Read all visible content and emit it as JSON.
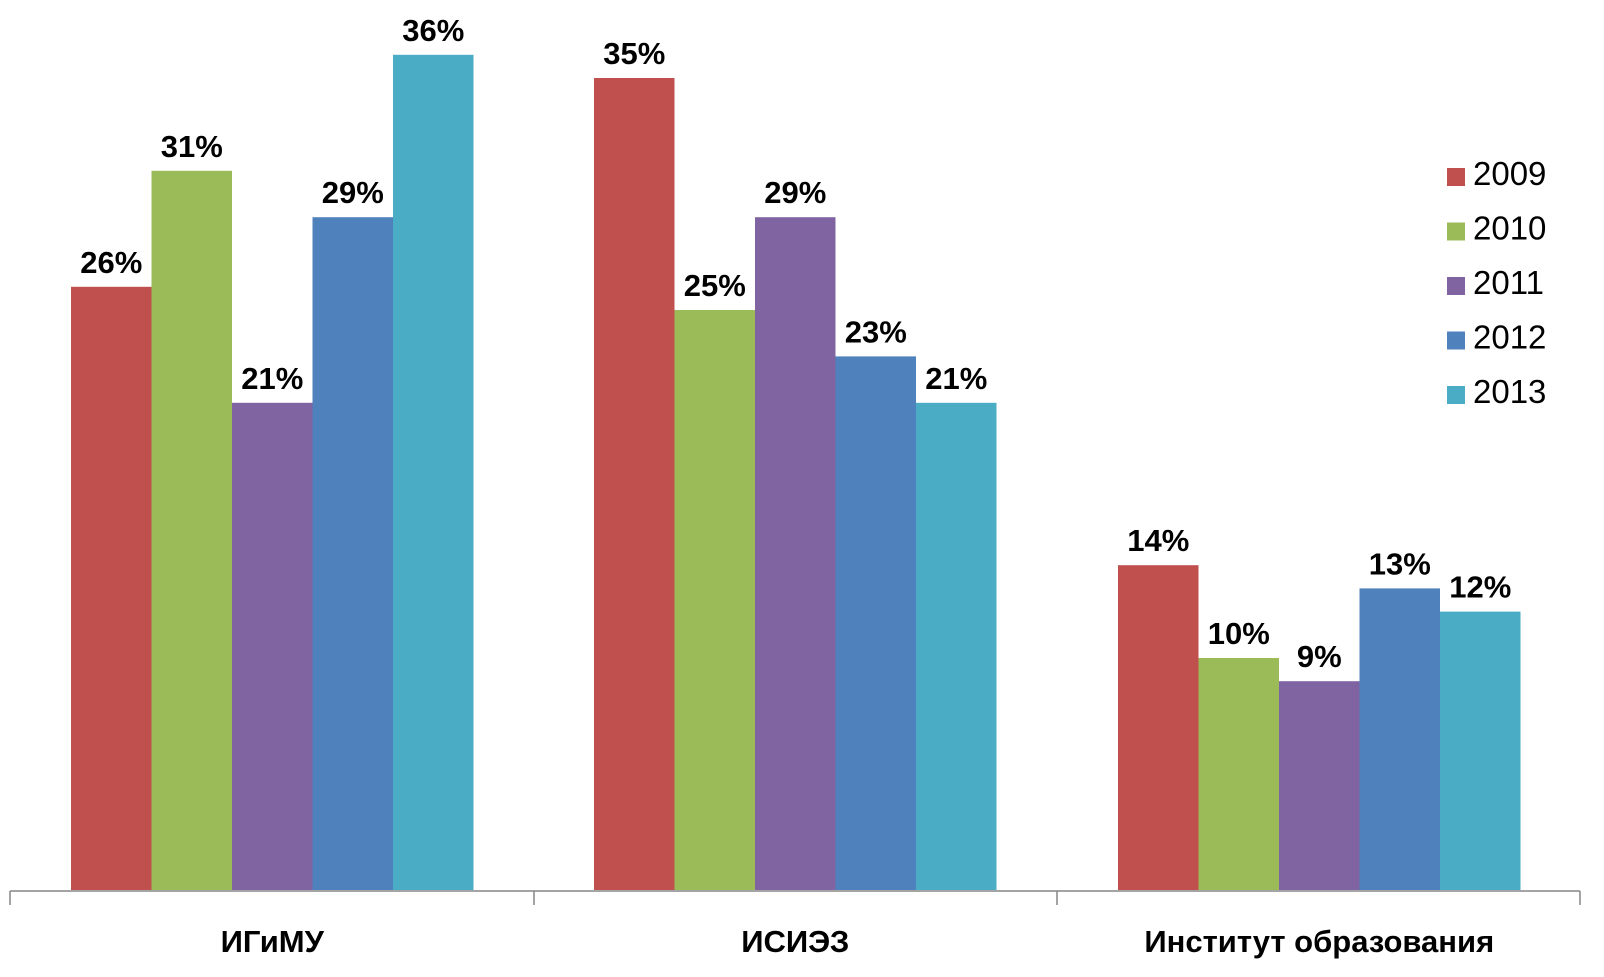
{
  "chart_data": {
    "type": "bar",
    "categories": [
      "ИГиМУ",
      "ИСИЭЗ",
      "Институт образования"
    ],
    "series": [
      {
        "name": "2009",
        "color": "#C0504D",
        "values": [
          26,
          35,
          14
        ],
        "labels": [
          "26%",
          "35%",
          "14%"
        ]
      },
      {
        "name": "2010",
        "color": "#9BBB59",
        "values": [
          31,
          25,
          10
        ],
        "labels": [
          "31%",
          "25%",
          "10%"
        ]
      },
      {
        "name": "2011",
        "color": "#8064A2",
        "values": [
          21,
          29,
          9
        ],
        "labels": [
          "21%",
          "29%",
          "9%"
        ]
      },
      {
        "name": "2012",
        "color": "#4F81BD",
        "values": [
          29,
          23,
          13
        ],
        "labels": [
          "29%",
          "23%",
          "13%"
        ]
      },
      {
        "name": "2013",
        "color": "#4BACC6",
        "values": [
          36,
          21,
          12
        ],
        "labels": [
          "36%",
          "21%",
          "12%"
        ]
      }
    ],
    "ylim": [
      0,
      37
    ],
    "grid": false,
    "legend_position": "right",
    "axis_color": "#868686"
  }
}
